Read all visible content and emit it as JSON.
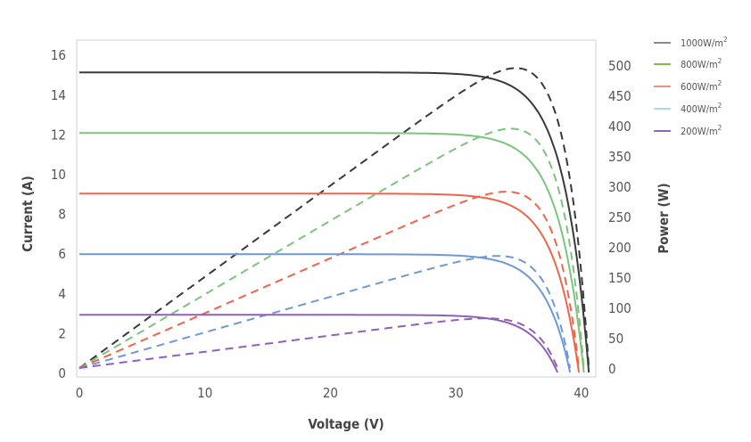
{
  "chart_data": {
    "type": "line",
    "title": "",
    "xlabel": "Voltage (V)",
    "ylabel": "Current (A)",
    "y2label": "Power (W)",
    "xlim": [
      0,
      41
    ],
    "ylim": [
      0,
      16
    ],
    "y2lim": [
      0,
      500
    ],
    "grid": false,
    "legend_position": "right",
    "x_ticks": [
      "0",
      "10",
      "20",
      "30",
      "40"
    ],
    "y_ticks": [
      "0",
      "2",
      "4",
      "6",
      "8",
      "10",
      "12",
      "14",
      "16"
    ],
    "y2_ticks": [
      "0",
      "50",
      "100",
      "150",
      "200",
      "250",
      "300",
      "350",
      "400",
      "450",
      "500"
    ],
    "series": [
      {
        "name": "1000W/m",
        "sup": "2",
        "legend_color": "#8a8a8a",
        "color": "#3a3a3a",
        "isc": 15.1,
        "voc": 40.6,
        "vmp": 34.3,
        "pmax": 495
      },
      {
        "name": "800W/m",
        "sup": "2",
        "legend_color": "#7cc242",
        "color": "#7dc37d",
        "isc": 12.05,
        "voc": 40.2,
        "vmp": 34.2,
        "pmax": 395
      },
      {
        "name": "600W/m",
        "sup": "2",
        "legend_color": "#f0907a",
        "color": "#f0654a",
        "isc": 9.0,
        "voc": 39.8,
        "vmp": 34.0,
        "pmax": 291
      },
      {
        "name": "400W/m",
        "sup": "2",
        "legend_color": "#a8dde0",
        "color": "#6f98d8",
        "isc": 5.95,
        "voc": 39.1,
        "vmp": 33.6,
        "pmax": 185
      },
      {
        "name": "200W/m",
        "sup": "2",
        "legend_color": "#8a6bb8",
        "color": "#9060b8",
        "isc": 2.9,
        "voc": 38.1,
        "vmp": 33.0,
        "pmax": 82
      }
    ]
  }
}
